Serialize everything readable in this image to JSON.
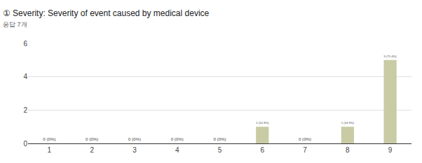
{
  "chart_data": {
    "type": "bar",
    "title": "① Severity: Severity of event caused by medical device",
    "subtitle": "응답 7개",
    "categories": [
      "1",
      "2",
      "3",
      "4",
      "5",
      "6",
      "7",
      "8",
      "9"
    ],
    "values": [
      0,
      0,
      0,
      0,
      0,
      1,
      0,
      1,
      5
    ],
    "value_labels": [
      "0 (0%)",
      "0 (0%)",
      "0 (0%)",
      "0 (0%)",
      "0 (0%)",
      "1 (14.3%)",
      "0 (0%)",
      "1 (14.3%)",
      "5 (71.4%)"
    ],
    "data_labels": true,
    "color": "#c9cba5",
    "ylim": [
      0,
      6
    ],
    "yticks": [
      0,
      2,
      4,
      6
    ],
    "grid": true
  }
}
